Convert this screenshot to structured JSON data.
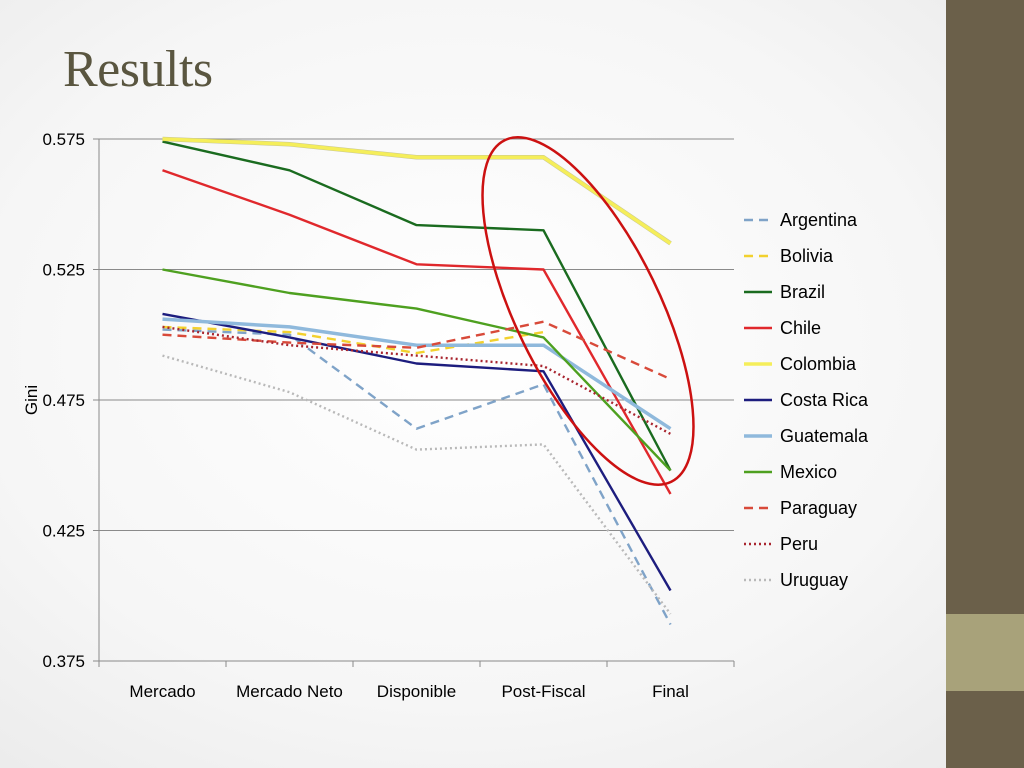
{
  "slide": {
    "title": "Results"
  },
  "colors": {
    "sidebar": "#6b604a",
    "sidebar_accent": "#a8a27a",
    "title": "#5a5640",
    "highlight": "#cc1111"
  },
  "highlight_annotation": {
    "shape": "ellipse",
    "color": "#cc1111",
    "target_categories": [
      "Post-Fiscal",
      "Final"
    ]
  },
  "chart_data": {
    "type": "line",
    "title": "",
    "xlabel": "",
    "ylabel": "Gini",
    "ylim": [
      0.375,
      0.575
    ],
    "yticks": [
      "0.575",
      "0.525",
      "0.475",
      "0.425",
      "0.375"
    ],
    "grid": true,
    "legend_position": "right",
    "categories": [
      "Mercado",
      "Mercado Neto",
      "Disponible",
      "Post-Fiscal",
      "Final"
    ],
    "series": [
      {
        "name": "Argentina",
        "color": "#7fa3c8",
        "dash": "dashed",
        "values": [
          0.502,
          0.5,
          0.464,
          0.481,
          0.389
        ]
      },
      {
        "name": "Bolivia",
        "color": "#f2d12e",
        "dash": "dashed",
        "values": [
          0.503,
          0.501,
          0.493,
          0.501,
          null
        ]
      },
      {
        "name": "Brazil",
        "color": "#1a6b1f",
        "dash": "solid",
        "values": [
          0.574,
          0.563,
          0.542,
          0.54,
          0.448
        ]
      },
      {
        "name": "Chile",
        "color": "#e0282c",
        "dash": "solid",
        "values": [
          0.563,
          0.546,
          0.527,
          0.525,
          0.439
        ]
      },
      {
        "name": "Colombia",
        "color": "#f5ee5a",
        "dash": "solid",
        "values": [
          0.575,
          0.573,
          0.568,
          0.568,
          0.535
        ]
      },
      {
        "name": "Costa Rica",
        "color": "#1d1d7e",
        "dash": "solid",
        "values": [
          0.508,
          0.499,
          0.489,
          0.486,
          0.402
        ]
      },
      {
        "name": "Guatemala",
        "color": "#8fb9dc",
        "dash": "solid",
        "values": [
          0.506,
          0.503,
          0.496,
          0.496,
          0.464
        ]
      },
      {
        "name": "Mexico",
        "color": "#4ea020",
        "dash": "solid",
        "values": [
          0.525,
          0.516,
          0.51,
          0.499,
          0.448
        ]
      },
      {
        "name": "Paraguay",
        "color": "#d84a3a",
        "dash": "dashed",
        "values": [
          0.5,
          0.497,
          0.495,
          0.505,
          0.483
        ]
      },
      {
        "name": "Peru",
        "color": "#a8252f",
        "dash": "dotted",
        "values": [
          0.503,
          0.496,
          0.492,
          0.488,
          0.462
        ]
      },
      {
        "name": "Uruguay",
        "color": "#b9b9b9",
        "dash": "dotted",
        "values": [
          0.492,
          0.478,
          0.456,
          0.458,
          0.393
        ]
      }
    ]
  }
}
